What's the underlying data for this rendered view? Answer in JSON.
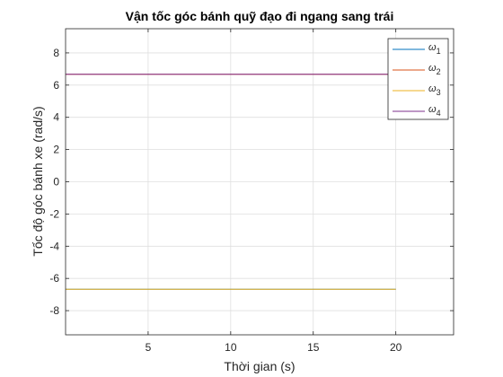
{
  "chart_data": {
    "type": "line",
    "title": "Vận tốc góc bánh quỹ đạo đi ngang sang trái",
    "xlabel": "Thời gian (s)",
    "ylabel": "Tốc độ góc bánh xe (rad/s)",
    "xlim": [
      0,
      23.5
    ],
    "ylim": [
      -9.5,
      9.5
    ],
    "xticks": [
      5,
      10,
      15,
      20
    ],
    "xtick_labels": [
      "5",
      "10",
      "15",
      "20"
    ],
    "yticks": [
      -8,
      -6,
      -4,
      -2,
      0,
      2,
      4,
      6,
      8
    ],
    "ytick_labels": [
      "-8",
      "-6",
      "-4",
      "-2",
      "0",
      "2",
      "4",
      "6",
      "8"
    ],
    "grid": true,
    "legend_position": "top-right",
    "series": [
      {
        "name": "ω1",
        "legend_base": "ω",
        "legend_sub": "1",
        "color": "#0072BD",
        "x": [
          0,
          20
        ],
        "y": [
          -6.67,
          -6.67
        ]
      },
      {
        "name": "ω2",
        "legend_base": "ω",
        "legend_sub": "2",
        "color": "#D95319",
        "x": [
          0,
          20
        ],
        "y": [
          6.67,
          6.67
        ]
      },
      {
        "name": "ω3",
        "legend_base": "ω",
        "legend_sub": "3",
        "color": "#EDB120",
        "x": [
          0,
          20
        ],
        "y": [
          -6.67,
          -6.67
        ]
      },
      {
        "name": "ω4",
        "legend_base": "ω",
        "legend_sub": "4",
        "color": "#7E2F8E",
        "x": [
          0,
          20
        ],
        "y": [
          6.67,
          6.67
        ]
      }
    ]
  }
}
